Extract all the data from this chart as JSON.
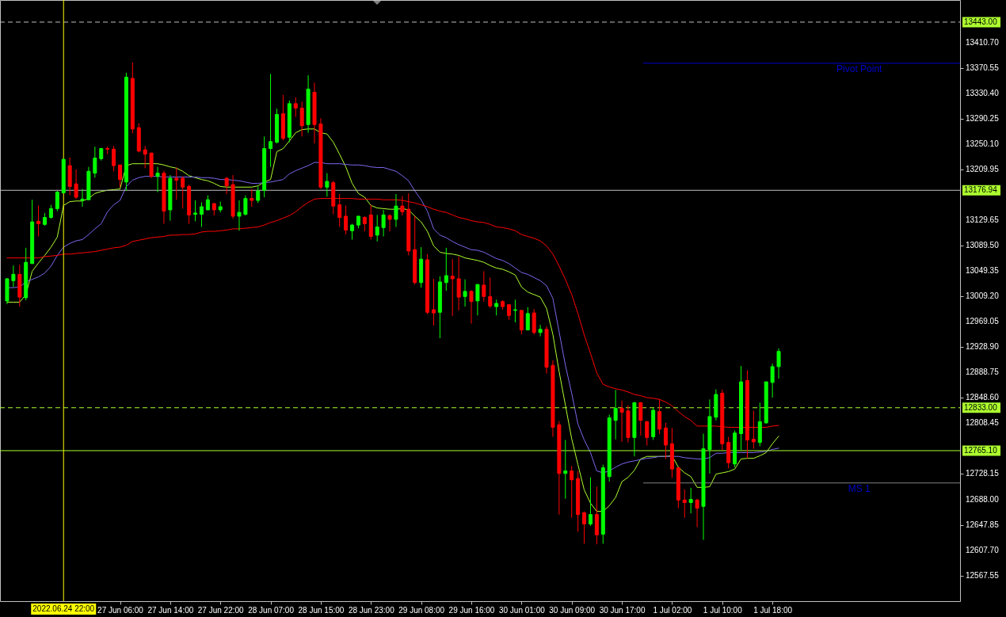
{
  "chart_data": {
    "type": "candlestick",
    "categories": [
      null,
      null,
      null,
      null,
      null,
      null,
      null,
      null,
      null,
      "2022.06.24 22:00",
      null,
      null,
      null,
      null,
      null,
      null,
      null,
      null,
      "27 Jun 06:00",
      null,
      null,
      null,
      null,
      null,
      null,
      null,
      "27 Jun 14:00",
      null,
      null,
      null,
      null,
      null,
      null,
      null,
      "27 Jun 22:00",
      null,
      null,
      null,
      null,
      null,
      null,
      null,
      "28 Jun 07:00",
      null,
      null,
      null,
      null,
      null,
      null,
      null,
      "28 Jun 15:00",
      null,
      null,
      null,
      null,
      null,
      null,
      null,
      "28 Jun 23:00",
      null,
      null,
      null,
      null,
      null,
      null,
      null,
      "29 Jun 08:00",
      null,
      null,
      null,
      null,
      null,
      null,
      null,
      "29 Jun 16:00",
      null,
      null,
      null,
      null,
      null,
      null,
      null,
      "30 Jun 01:00",
      null,
      null,
      null,
      null,
      null,
      null,
      null,
      "30 Jun 09:00",
      null,
      null,
      null,
      null,
      null,
      null,
      null,
      "30 Jun 17:00",
      null,
      null,
      null,
      null,
      null,
      null,
      null,
      "1 Jul 02:00",
      null,
      null,
      null,
      null,
      null,
      null,
      null,
      "1 Jul 10:00",
      null,
      null,
      null,
      null,
      null,
      null,
      null,
      "1 Jul 18:00",
      null
    ],
    "ohlc": [
      [
        13002,
        13038,
        12997,
        13037
      ],
      [
        13034,
        13058,
        13024,
        13044
      ],
      [
        13044,
        13059,
        12993,
        13008
      ],
      [
        13007,
        13086,
        13003,
        13063
      ],
      [
        13061,
        13162,
        13061,
        13127
      ],
      [
        13128,
        13153,
        13104,
        13124
      ],
      [
        13123,
        13141,
        13121,
        13134
      ],
      [
        13134,
        13154,
        13132,
        13148
      ],
      [
        13148,
        13176,
        13144,
        13174
      ],
      [
        13173,
        13226,
        13173,
        13226
      ],
      [
        13216,
        13229,
        13169,
        13183
      ],
      [
        13187,
        13210,
        13163,
        13166
      ],
      [
        13161,
        13179,
        13151,
        13163
      ],
      [
        13162,
        13214,
        13162,
        13207
      ],
      [
        13204,
        13246,
        13197,
        13228
      ],
      [
        13227,
        13244,
        13224,
        13243
      ],
      [
        13243,
        13246,
        13234,
        13242
      ],
      [
        13242,
        13247,
        13207,
        13216
      ],
      [
        13217,
        13217,
        13182,
        13194
      ],
      [
        13190,
        13363,
        13176,
        13356
      ],
      [
        13354,
        13379,
        13267,
        13274
      ],
      [
        13276,
        13283,
        13237,
        13239
      ],
      [
        13241,
        13247,
        13212,
        13234
      ],
      [
        13236,
        13236,
        13196,
        13199
      ],
      [
        13199,
        13214,
        13174,
        13204
      ],
      [
        13204,
        13208,
        13124,
        13144
      ],
      [
        13146,
        13201,
        13129,
        13196
      ],
      [
        13196,
        13213,
        13162,
        13193
      ],
      [
        13196,
        13199,
        13148,
        13182
      ],
      [
        13183,
        13186,
        13124,
        13138
      ],
      [
        13139,
        13161,
        13128,
        13141
      ],
      [
        13139,
        13158,
        13119,
        13151
      ],
      [
        13146,
        13169,
        13146,
        13162
      ],
      [
        13156,
        13157,
        13137,
        13146
      ],
      [
        13146,
        13159,
        13142,
        13151
      ],
      [
        13196,
        13198,
        13171,
        13184
      ],
      [
        13186,
        13201,
        13132,
        13136
      ],
      [
        13136,
        13161,
        13113,
        13142
      ],
      [
        13139,
        13169,
        13137,
        13164
      ],
      [
        13164,
        13179,
        13151,
        13161
      ],
      [
        13161,
        13183,
        13157,
        13176
      ],
      [
        13177,
        13262,
        13166,
        13243
      ],
      [
        13243,
        13361,
        13214,
        13254
      ],
      [
        13253,
        13306,
        13251,
        13297
      ],
      [
        13298,
        13328,
        13256,
        13259
      ],
      [
        13261,
        13319,
        13253,
        13314
      ],
      [
        13314,
        13324,
        13293,
        13307
      ],
      [
        13307,
        13317,
        13262,
        13279
      ],
      [
        13281,
        13359,
        13268,
        13337
      ],
      [
        13332,
        13347,
        13251,
        13281
      ],
      [
        13282,
        13291,
        13179,
        13182
      ],
      [
        13182,
        13204,
        13167,
        13191
      ],
      [
        13189,
        13192,
        13139,
        13152
      ],
      [
        13154,
        13171,
        13119,
        13134
      ],
      [
        13136,
        13153,
        13107,
        13114
      ],
      [
        13113,
        13124,
        13099,
        13122
      ],
      [
        13122,
        13136,
        13117,
        13136
      ],
      [
        13134,
        13136,
        13112,
        13124
      ],
      [
        13138,
        13154,
        13099,
        13104
      ],
      [
        13106,
        13138,
        13096,
        13119
      ],
      [
        13118,
        13146,
        13104,
        13138
      ],
      [
        13137,
        13139,
        13112,
        13131
      ],
      [
        13131,
        13171,
        13119,
        13152
      ],
      [
        13152,
        13168,
        13137,
        13143
      ],
      [
        13147,
        13172,
        13074,
        13081
      ],
      [
        13083,
        13136,
        13028,
        13031
      ],
      [
        13031,
        13087,
        13023,
        13068
      ],
      [
        13067,
        13076,
        12981,
        12984
      ],
      [
        12988,
        13037,
        12963,
        12983
      ],
      [
        12984,
        13041,
        12943,
        13032
      ],
      [
        13031,
        13086,
        13018,
        13042
      ],
      [
        13041,
        13068,
        12978,
        13037
      ],
      [
        13037,
        13072,
        12987,
        13008
      ],
      [
        13009,
        13036,
        12993,
        13017
      ],
      [
        13017,
        13019,
        12966,
        13001
      ],
      [
        13002,
        13028,
        12979,
        13028
      ],
      [
        13027,
        13049,
        13001,
        13009
      ],
      [
        13009,
        13039,
        12991,
        12994
      ],
      [
        12993,
        13004,
        12979,
        12998
      ],
      [
        13001,
        13003,
        12988,
        12993
      ],
      [
        12996,
        12996,
        12972,
        12979
      ],
      [
        12987,
        13004,
        12968,
        12988
      ],
      [
        12987,
        12987,
        12949,
        12956
      ],
      [
        12956,
        12992,
        12956,
        12982
      ],
      [
        12983,
        12989,
        12949,
        12952
      ],
      [
        12952,
        12964,
        12946,
        12957
      ],
      [
        12957,
        12962,
        12887,
        12897
      ],
      [
        12900,
        12908,
        12787,
        12802
      ],
      [
        12806,
        12812,
        12664,
        12729
      ],
      [
        12729,
        12782,
        12689,
        12733
      ],
      [
        12733,
        12741,
        12659,
        12719
      ],
      [
        12721,
        12733,
        12637,
        12664
      ],
      [
        12667,
        12669,
        12618,
        12649
      ],
      [
        12649,
        12723,
        12646,
        12664
      ],
      [
        12664,
        12708,
        12617,
        12632
      ],
      [
        12633,
        12743,
        12618,
        12738
      ],
      [
        12724,
        12822,
        12716,
        12817
      ],
      [
        12813,
        12861,
        12783,
        12832
      ],
      [
        12832,
        12844,
        12779,
        12826
      ],
      [
        12828,
        12837,
        12778,
        12786
      ],
      [
        12786,
        12842,
        12756,
        12841
      ],
      [
        12841,
        12842,
        12789,
        12813
      ],
      [
        12811,
        12812,
        12773,
        12786
      ],
      [
        12787,
        12833,
        12782,
        12829
      ],
      [
        12827,
        12847,
        12791,
        12799
      ],
      [
        12801,
        12809,
        12752,
        12774
      ],
      [
        12776,
        12801,
        12722,
        12736
      ],
      [
        12738,
        12738,
        12674,
        12687
      ],
      [
        12687,
        12704,
        12659,
        12683
      ],
      [
        12683,
        12706,
        12666,
        12688
      ],
      [
        12687,
        12689,
        12644,
        12674
      ],
      [
        12677,
        12792,
        12624,
        12768
      ],
      [
        12767,
        12846,
        12729,
        12819
      ],
      [
        12818,
        12862,
        12813,
        12854
      ],
      [
        12856,
        12862,
        12766,
        12776
      ],
      [
        12778,
        12787,
        12737,
        12746
      ],
      [
        12744,
        12797,
        12739,
        12793
      ],
      [
        12792,
        12899,
        12766,
        12874
      ],
      [
        12876,
        12892,
        12753,
        12782
      ],
      [
        12783,
        12828,
        12768,
        12779
      ],
      [
        12778,
        12841,
        12772,
        12811
      ],
      [
        12809,
        12874,
        12808,
        12874
      ],
      [
        12873,
        12903,
        12849,
        12898
      ],
      [
        12898,
        12927,
        12879,
        12922
      ]
    ],
    "colors": [
      "#00ff00",
      "#00ff00",
      "#ff0000",
      "#00ff00",
      "#00ff00",
      "#ff0000",
      "#00ff00",
      "#00ff00",
      "#00ff00",
      "#00ff00",
      "#ff0000",
      "#ff0000",
      "#00ff00",
      "#00ff00",
      "#00ff00",
      "#00ff00",
      "#ff0000",
      "#ff0000",
      "#ff0000",
      "#00ff00",
      "#ff0000",
      "#ff0000",
      "#ff0000",
      "#ff0000",
      "#00ff00",
      "#ff0000",
      "#00ff00",
      "#ff0000",
      "#ff0000",
      "#ff0000",
      "#00ff00",
      "#00ff00",
      "#00ff00",
      "#ff0000",
      "#00ff00",
      "#ff0000",
      "#ff0000",
      "#00ff00",
      "#00ff00",
      "#ff0000",
      "#00ff00",
      "#00ff00",
      "#00ff00",
      "#00ff00",
      "#ff0000",
      "#00ff00",
      "#ff0000",
      "#ff0000",
      "#00ff00",
      "#ff0000",
      "#ff0000",
      "#00ff00",
      "#ff0000",
      "#ff0000",
      "#ff0000",
      "#00ff00",
      "#00ff00",
      "#ff0000",
      "#ff0000",
      "#00ff00",
      "#00ff00",
      "#ff0000",
      "#00ff00",
      "#ff0000",
      "#ff0000",
      "#ff0000",
      "#00ff00",
      "#ff0000",
      "#ff0000",
      "#00ff00",
      "#00ff00",
      "#ff0000",
      "#ff0000",
      "#00ff00",
      "#ff0000",
      "#00ff00",
      "#ff0000",
      "#ff0000",
      "#00ff00",
      "#ff0000",
      "#ff0000",
      "#00ff00",
      "#ff0000",
      "#00ff00",
      "#ff0000",
      "#00ff00",
      "#ff0000",
      "#ff0000",
      "#ff0000",
      "#00ff00",
      "#ff0000",
      "#ff0000",
      "#ff0000",
      "#00ff00",
      "#ff0000",
      "#00ff00",
      "#00ff00",
      "#00ff00",
      "#ff0000",
      "#ff0000",
      "#00ff00",
      "#ff0000",
      "#ff0000",
      "#00ff00",
      "#ff0000",
      "#ff0000",
      "#ff0000",
      "#ff0000",
      "#ff0000",
      "#00ff00",
      "#ff0000",
      "#00ff00",
      "#00ff00",
      "#00ff00",
      "#ff0000",
      "#ff0000",
      "#00ff00",
      "#00ff00",
      "#ff0000",
      "#ff0000",
      "#00ff00",
      "#00ff00",
      "#00ff00",
      "#00ff00"
    ],
    "series": [
      {
        "type": "line",
        "color": "#adff2f",
        "values": [
          13000,
          13000,
          13000,
          13012,
          13049,
          13062,
          13074,
          13087,
          13103,
          13153,
          13159,
          13160,
          13160,
          13164,
          13172,
          13175,
          13177,
          13178,
          13179,
          13216,
          13219,
          13219,
          13219,
          13219,
          13219,
          13217,
          13214,
          13212,
          13207,
          13200,
          13197,
          13194,
          13192,
          13188,
          13183,
          13182,
          13182,
          13182,
          13182,
          13182,
          13184,
          13190,
          13194,
          13238,
          13243,
          13255,
          13268,
          13273,
          13274,
          13274,
          13268,
          13266,
          13253,
          13234,
          13214,
          13188,
          13172,
          13166,
          13153,
          13149,
          13148,
          13147,
          13147,
          13148,
          13146,
          13136,
          13127,
          13112,
          13089,
          13079,
          13077,
          13076,
          13074,
          13070,
          13068,
          13066,
          13063,
          13058,
          13054,
          13052,
          13048,
          13043,
          13024,
          13016,
          13012,
          13008,
          12990,
          12949,
          12890,
          12837,
          12784,
          12743,
          12703,
          12682,
          12669,
          12669,
          12678,
          12691,
          12716,
          12723,
          12734,
          12752,
          12756,
          12756,
          12756,
          12756,
          12757,
          12739,
          12730,
          12724,
          12707,
          12707,
          12708,
          12728,
          12730,
          12732,
          12736,
          12752,
          12753,
          12753,
          12757,
          12762,
          12776,
          12788
        ]
      },
      {
        "type": "line",
        "color": "#7b68ee",
        "values": [
          13023,
          13023,
          13024,
          13032,
          13036,
          13040,
          13046,
          13057,
          13074,
          13087,
          13093,
          13097,
          13099,
          13107,
          13116,
          13124,
          13143,
          13154,
          13161,
          13183,
          13193,
          13197,
          13199,
          13199,
          13199,
          13198,
          13198,
          13198,
          13198,
          13198,
          13198,
          13197,
          13197,
          13196,
          13194,
          13194,
          13193,
          13192,
          13190,
          13188,
          13188,
          13189,
          13190,
          13192,
          13194,
          13203,
          13208,
          13212,
          13216,
          13221,
          13221,
          13219,
          13219,
          13219,
          13218,
          13217,
          13217,
          13216,
          13214,
          13213,
          13213,
          13210,
          13207,
          13200,
          13192,
          13176,
          13162,
          13144,
          13116,
          13106,
          13102,
          13096,
          13091,
          13087,
          13083,
          13082,
          13079,
          13074,
          13069,
          13066,
          13061,
          13054,
          13047,
          13044,
          13039,
          13034,
          13026,
          13006,
          12953,
          12900,
          12856,
          12807,
          12782,
          12762,
          12733,
          12730,
          12733,
          12739,
          12744,
          12747,
          12749,
          12751,
          12753,
          12754,
          12756,
          12756,
          12756,
          12756,
          12754,
          12753,
          12752,
          12752,
          12754,
          12761,
          12761,
          12762,
          12762,
          12762,
          12762,
          12762,
          12763,
          12764,
          12767,
          12769
        ]
      },
      {
        "type": "line",
        "color": "#ff0000",
        "values": [
          13070,
          13070,
          13070,
          13070,
          13070,
          13070,
          13072,
          13073,
          13074,
          13076,
          13076,
          13077,
          13078,
          13079,
          13080,
          13082,
          13084,
          13086,
          13087,
          13090,
          13096,
          13098,
          13100,
          13102,
          13103,
          13104,
          13106,
          13106,
          13107,
          13107,
          13108,
          13111,
          13112,
          13112,
          13113,
          13114,
          13116,
          13116,
          13117,
          13118,
          13119,
          13122,
          13126,
          13129,
          13133,
          13137,
          13143,
          13151,
          13158,
          13163,
          13164,
          13164,
          13164,
          13164,
          13164,
          13164,
          13163,
          13163,
          13163,
          13163,
          13162,
          13162,
          13162,
          13161,
          13159,
          13157,
          13154,
          13151,
          13147,
          13144,
          13142,
          13138,
          13134,
          13132,
          13129,
          13127,
          13126,
          13123,
          13119,
          13118,
          13116,
          13113,
          13107,
          13104,
          13101,
          13097,
          13089,
          13076,
          13057,
          13036,
          13012,
          12982,
          12948,
          12919,
          12888,
          12870,
          12866,
          12863,
          12861,
          12858,
          12854,
          12852,
          12849,
          12848,
          12846,
          12842,
          12836,
          12827,
          12819,
          12813,
          12804,
          12804,
          12804,
          12804,
          12803,
          12802,
          12802,
          12802,
          12802,
          12802,
          12802,
          12802,
          12804,
          12805
        ]
      }
    ],
    "ylim": [
      12527,
      13478
    ],
    "yticks": [
      {
        "value": 13410.7,
        "label": "13410.70"
      },
      13370.55,
      {
        "value": 13330.4,
        "label": "13330.40"
      },
      13290.25,
      {
        "value": 13250.1,
        "label": "13250.10"
      },
      13209.95,
      13129.65,
      {
        "value": 13089.5,
        "label": "13089.50"
      },
      13049.35,
      {
        "value": 13009.2,
        "label": "13009.20"
      },
      12969.05,
      {
        "value": 12928.9,
        "label": "12928.90"
      },
      12888.75,
      {
        "value": 12848.6,
        "label": "12848.60"
      },
      12808.45,
      12728.15,
      {
        "value": 12688,
        "label": "12688.00"
      },
      12647.85,
      {
        "value": 12607.7,
        "label": "12607.70"
      },
      12567.55
    ],
    "ref_lines": [
      {
        "axis": "y",
        "value": 13443,
        "label": "13443.00",
        "color": "#c0c0c0",
        "line_style": "dashed"
      },
      {
        "axis": "y",
        "value": 13176.94,
        "label": "13176.94",
        "color": "#c0c0c0"
      },
      {
        "axis": "y",
        "value": 12833,
        "label": "12833.00",
        "color": "#adff2f",
        "line_style": "dashed"
      },
      {
        "axis": "y",
        "value": 12765.1,
        "label": "12765.10",
        "color": "#adff2f"
      },
      {
        "axis": "y",
        "value": 13378,
        "label": "Pivot Point",
        "color": "#0000cd"
      },
      {
        "axis": "y",
        "value": 12714,
        "label": "MS 1",
        "color": "#808080"
      },
      {
        "axis": "x",
        "value": "2022.06.24 22:00",
        "color": "#ffff00"
      }
    ]
  }
}
